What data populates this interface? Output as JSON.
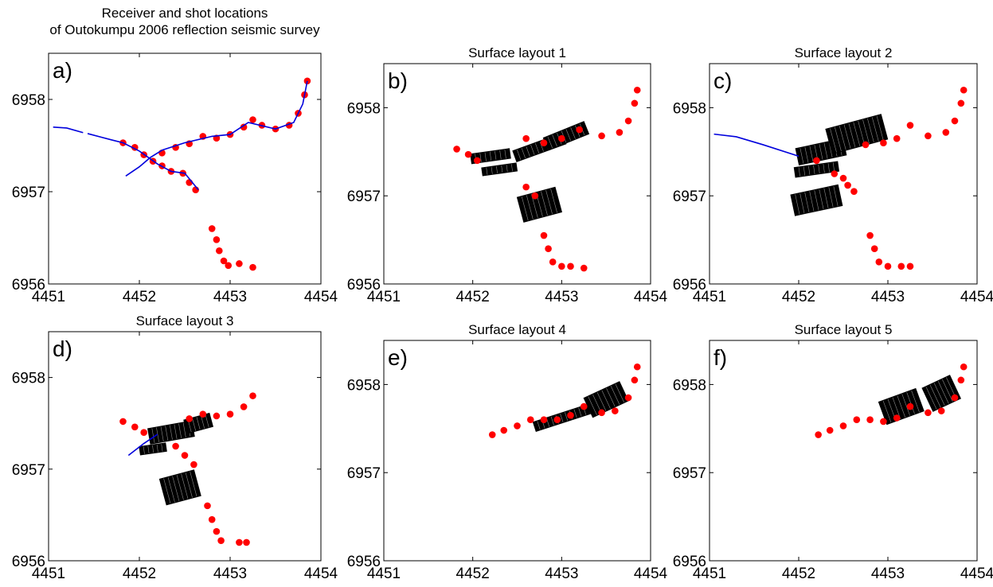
{
  "figure": {
    "colors": {
      "shots": "#ff0000",
      "receivers": "#0000dd",
      "traces": "#000000",
      "frame": "#000000"
    }
  },
  "chart_data": [
    {
      "type": "scatter",
      "panel_label": "a)",
      "title": "Receiver and shot locations of Outokumpu 2006 reflection seismic survey",
      "title_lines": [
        "Receiver and shot locations",
        "of Outokumpu 2006 reflection seismic survey"
      ],
      "xlabel": "",
      "ylabel": "",
      "xlim": [
        4451,
        4454
      ],
      "ylim": [
        6956,
        6958.5
      ],
      "xticks": [
        4451,
        4452,
        4453,
        4454
      ],
      "yticks": [
        6956,
        6957,
        6958
      ],
      "series": [
        {
          "kind": "receivers",
          "segments": [
            [
              [
                4451.05,
                6957.7
              ],
              [
                4451.2,
                6957.69
              ],
              [
                4451.38,
                6957.64
              ]
            ],
            [
              [
                4451.43,
                6957.63
              ],
              [
                4451.7,
                6957.56
              ],
              [
                4451.82,
                6957.53
              ],
              [
                4452.0,
                6957.44
              ],
              [
                4452.2,
                6957.3
              ],
              [
                4452.35,
                6957.22
              ],
              [
                4452.5,
                6957.2
              ],
              [
                4452.65,
                6957.02
              ]
            ],
            [
              [
                4451.85,
                6957.17
              ],
              [
                4452.0,
                6957.27
              ],
              [
                4452.12,
                6957.37
              ],
              [
                4452.25,
                6957.45
              ]
            ],
            [
              [
                4452.25,
                6957.45
              ],
              [
                4452.5,
                6957.53
              ],
              [
                4452.8,
                6957.6
              ],
              [
                4453.0,
                6957.62
              ],
              [
                4453.2,
                6957.75
              ],
              [
                4453.5,
                6957.68
              ],
              [
                4453.7,
                6957.75
              ],
              [
                4453.8,
                6957.95
              ],
              [
                4453.85,
                6958.2
              ]
            ]
          ]
        },
        {
          "kind": "shots",
          "points": [
            [
              4451.82,
              6957.53
            ],
            [
              4451.95,
              6957.48
            ],
            [
              4452.05,
              6957.4
            ],
            [
              4452.15,
              6957.33
            ],
            [
              4452.25,
              6957.28
            ],
            [
              4452.35,
              6957.22
            ],
            [
              4452.48,
              6957.2
            ],
            [
              4452.55,
              6957.1
            ],
            [
              4452.62,
              6957.02
            ],
            [
              4452.25,
              6957.42
            ],
            [
              4452.4,
              6957.48
            ],
            [
              4452.55,
              6957.52
            ],
            [
              4452.7,
              6957.6
            ],
            [
              4452.85,
              6957.58
            ],
            [
              4453.0,
              6957.62
            ],
            [
              4453.15,
              6957.7
            ],
            [
              4453.25,
              6957.78
            ],
            [
              4453.35,
              6957.72
            ],
            [
              4453.5,
              6957.68
            ],
            [
              4453.65,
              6957.72
            ],
            [
              4453.75,
              6957.85
            ],
            [
              4453.82,
              6958.05
            ],
            [
              4453.85,
              6958.2
            ],
            [
              4452.8,
              6956.6
            ],
            [
              4452.85,
              6956.48
            ],
            [
              4452.88,
              6956.36
            ],
            [
              4452.93,
              6956.25
            ],
            [
              4452.98,
              6956.2
            ],
            [
              4453.1,
              6956.22
            ],
            [
              4453.25,
              6956.18
            ]
          ]
        }
      ]
    },
    {
      "type": "scatter",
      "panel_label": "b)",
      "title": "Surface layout 1",
      "xlabel": "",
      "ylabel": "",
      "xlim": [
        4451,
        4454
      ],
      "ylim": [
        6956,
        6958.5
      ],
      "xticks": [
        4451,
        4452,
        4453,
        4454
      ],
      "yticks": [
        6956,
        6957,
        6958
      ],
      "series": [
        {
          "kind": "shots",
          "points": [
            [
              4451.82,
              6957.53
            ],
            [
              4451.95,
              6957.47
            ],
            [
              4452.05,
              6957.4
            ],
            [
              4452.6,
              6957.65
            ],
            [
              4452.8,
              6957.6
            ],
            [
              4453.0,
              6957.65
            ],
            [
              4453.2,
              6957.75
            ],
            [
              4453.45,
              6957.68
            ],
            [
              4453.65,
              6957.72
            ],
            [
              4453.75,
              6957.85
            ],
            [
              4453.82,
              6958.05
            ],
            [
              4453.85,
              6958.2
            ],
            [
              4452.6,
              6957.1
            ],
            [
              4452.7,
              6957.0
            ],
            [
              4452.8,
              6956.55
            ],
            [
              4452.85,
              6956.4
            ],
            [
              4452.9,
              6956.25
            ],
            [
              4453.0,
              6956.2
            ],
            [
              4453.1,
              6956.2
            ],
            [
              4453.25,
              6956.18
            ]
          ]
        },
        {
          "kind": "traces",
          "patches": [
            {
              "center": [
                4452.2,
                6957.45
              ],
              "size": [
                0.45,
                0.12
              ],
              "angle": -8
            },
            {
              "center": [
                4452.3,
                6957.3
              ],
              "size": [
                0.4,
                0.1
              ],
              "angle": -8
            },
            {
              "center": [
                4452.75,
                6957.55
              ],
              "size": [
                0.6,
                0.14
              ],
              "angle": -20
            },
            {
              "center": [
                4453.05,
                6957.68
              ],
              "size": [
                0.5,
                0.16
              ],
              "angle": -22
            },
            {
              "center": [
                4452.75,
                6956.9
              ],
              "size": [
                0.45,
                0.3
              ],
              "angle": -15
            }
          ]
        }
      ]
    },
    {
      "type": "scatter",
      "panel_label": "c)",
      "title": "Surface layout 2",
      "xlabel": "",
      "ylabel": "",
      "xlim": [
        4451,
        4454
      ],
      "ylim": [
        6956,
        6958.5
      ],
      "xticks": [
        4451,
        4452,
        4453,
        4454
      ],
      "yticks": [
        6956,
        6957,
        6958
      ],
      "series": [
        {
          "kind": "receivers",
          "segments": [
            [
              [
                4451.05,
                6957.7
              ],
              [
                4451.3,
                6957.67
              ],
              [
                4451.6,
                6957.58
              ],
              [
                4452.0,
                6957.45
              ]
            ]
          ]
        },
        {
          "kind": "shots",
          "points": [
            [
              4452.2,
              6957.4
            ],
            [
              4452.4,
              6957.25
            ],
            [
              4452.5,
              6957.2
            ],
            [
              4452.55,
              6957.12
            ],
            [
              4452.62,
              6957.05
            ],
            [
              4452.75,
              6957.58
            ],
            [
              4452.95,
              6957.6
            ],
            [
              4453.1,
              6957.65
            ],
            [
              4453.25,
              6957.8
            ],
            [
              4453.45,
              6957.68
            ],
            [
              4453.65,
              6957.72
            ],
            [
              4453.75,
              6957.85
            ],
            [
              4453.82,
              6958.05
            ],
            [
              4453.85,
              6958.2
            ],
            [
              4452.8,
              6956.55
            ],
            [
              4452.85,
              6956.4
            ],
            [
              4452.9,
              6956.25
            ],
            [
              4453.0,
              6956.2
            ],
            [
              4453.15,
              6956.2
            ],
            [
              4453.25,
              6956.2
            ]
          ]
        },
        {
          "kind": "traces",
          "patches": [
            {
              "center": [
                4452.25,
                6957.5
              ],
              "size": [
                0.55,
                0.2
              ],
              "angle": -12
            },
            {
              "center": [
                4452.65,
                6957.7
              ],
              "size": [
                0.65,
                0.3
              ],
              "angle": -15
            },
            {
              "center": [
                4452.2,
                6957.3
              ],
              "size": [
                0.5,
                0.12
              ],
              "angle": -8
            },
            {
              "center": [
                4452.2,
                6956.95
              ],
              "size": [
                0.55,
                0.25
              ],
              "angle": -12
            }
          ]
        }
      ]
    },
    {
      "type": "scatter",
      "panel_label": "d)",
      "title": "Surface layout 3",
      "xlabel": "",
      "ylabel": "",
      "xlim": [
        4451,
        4454
      ],
      "ylim": [
        6956,
        6958.5
      ],
      "xticks": [
        4451,
        4452,
        4453,
        4454
      ],
      "yticks": [
        6956,
        6957,
        6958
      ],
      "series": [
        {
          "kind": "receivers",
          "segments": [
            [
              [
                4451.88,
                6957.15
              ],
              [
                4452.05,
                6957.28
              ],
              [
                4452.2,
                6957.38
              ]
            ]
          ]
        },
        {
          "kind": "shots",
          "points": [
            [
              4451.82,
              6957.52
            ],
            [
              4451.95,
              6957.46
            ],
            [
              4452.05,
              6957.4
            ],
            [
              4452.4,
              6957.25
            ],
            [
              4452.5,
              6957.15
            ],
            [
              4452.6,
              6957.05
            ],
            [
              4452.55,
              6957.55
            ],
            [
              4452.7,
              6957.6
            ],
            [
              4452.85,
              6957.58
            ],
            [
              4453.0,
              6957.6
            ],
            [
              4453.15,
              6957.68
            ],
            [
              4453.25,
              6957.8
            ],
            [
              4452.75,
              6956.6
            ],
            [
              4452.8,
              6956.45
            ],
            [
              4452.85,
              6956.32
            ],
            [
              4452.9,
              6956.22
            ],
            [
              4453.1,
              6956.2
            ],
            [
              4453.18,
              6956.2
            ]
          ]
        },
        {
          "kind": "traces",
          "patches": [
            {
              "center": [
                4452.35,
                6957.4
              ],
              "size": [
                0.5,
                0.18
              ],
              "angle": -10
            },
            {
              "center": [
                4452.65,
                6957.5
              ],
              "size": [
                0.3,
                0.16
              ],
              "angle": -15
            },
            {
              "center": [
                4452.15,
                6957.22
              ],
              "size": [
                0.3,
                0.1
              ],
              "angle": -8
            },
            {
              "center": [
                4452.45,
                6956.8
              ],
              "size": [
                0.4,
                0.3
              ],
              "angle": -15
            }
          ]
        }
      ]
    },
    {
      "type": "scatter",
      "panel_label": "e)",
      "title": "Surface layout 4",
      "xlabel": "",
      "ylabel": "",
      "xlim": [
        4451,
        4454
      ],
      "ylim": [
        6956,
        6958.5
      ],
      "xticks": [
        4451,
        4452,
        4453,
        4454
      ],
      "yticks": [
        6956,
        6957,
        6958
      ],
      "series": [
        {
          "kind": "shots",
          "points": [
            [
              4452.22,
              6957.43
            ],
            [
              4452.35,
              6957.48
            ],
            [
              4452.5,
              6957.53
            ],
            [
              4452.65,
              6957.6
            ],
            [
              4452.8,
              6957.6
            ],
            [
              4452.95,
              6957.6
            ],
            [
              4453.1,
              6957.65
            ],
            [
              4453.25,
              6957.75
            ],
            [
              4453.45,
              6957.68
            ],
            [
              4453.6,
              6957.7
            ],
            [
              4453.75,
              6957.85
            ],
            [
              4453.82,
              6958.05
            ],
            [
              4453.85,
              6958.2
            ]
          ]
        },
        {
          "kind": "traces",
          "patches": [
            {
              "center": [
                4453.0,
                6957.62
              ],
              "size": [
                0.65,
                0.12
              ],
              "angle": -18
            },
            {
              "center": [
                4453.5,
                6957.83
              ],
              "size": [
                0.45,
                0.25
              ],
              "angle": -25
            }
          ]
        }
      ]
    },
    {
      "type": "scatter",
      "panel_label": "f)",
      "title": "Surface layout 5",
      "xlabel": "",
      "ylabel": "",
      "xlim": [
        4451,
        4454
      ],
      "ylim": [
        6956,
        6958.5
      ],
      "xticks": [
        4451,
        4452,
        4453,
        4454
      ],
      "yticks": [
        6956,
        6957,
        6958
      ],
      "series": [
        {
          "kind": "shots",
          "points": [
            [
              4452.22,
              6957.43
            ],
            [
              4452.35,
              6957.48
            ],
            [
              4452.5,
              6957.53
            ],
            [
              4452.65,
              6957.6
            ],
            [
              4452.8,
              6957.6
            ],
            [
              4452.95,
              6957.58
            ],
            [
              4453.1,
              6957.62
            ],
            [
              4453.25,
              6957.75
            ],
            [
              4453.45,
              6957.68
            ],
            [
              4453.6,
              6957.7
            ],
            [
              4453.75,
              6957.85
            ],
            [
              4453.82,
              6958.05
            ],
            [
              4453.85,
              6958.2
            ]
          ]
        },
        {
          "kind": "traces",
          "patches": [
            {
              "center": [
                4453.15,
                6957.75
              ],
              "size": [
                0.45,
                0.28
              ],
              "angle": -20
            },
            {
              "center": [
                4453.6,
                6957.9
              ],
              "size": [
                0.35,
                0.3
              ],
              "angle": -25
            }
          ]
        }
      ]
    }
  ]
}
